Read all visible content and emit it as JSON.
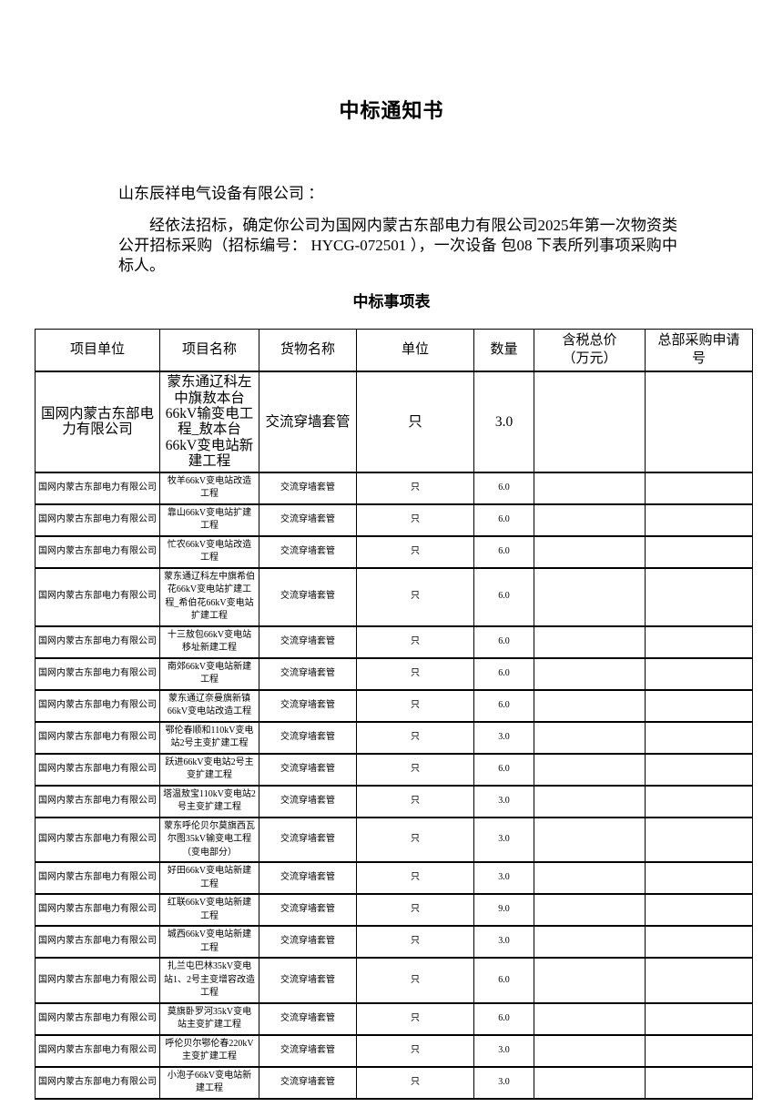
{
  "page": {
    "title": "中标通知书",
    "addressee": "山东辰祥电气设备有限公司 ：",
    "body_paragraph": "经依法招标，确定你公司为国网内蒙古东部电力有限公司2025年第一次物资类公开招标采购（招标编号： HYCG-072501 ），一次设备 包08 下表所列事项采购中标人。",
    "table_title": "中标事项表"
  },
  "colors": {
    "text": "#000000",
    "background": "#ffffff",
    "border": "#000000"
  },
  "table": {
    "headers": [
      "项目单位",
      "项目名称",
      "货物名称",
      "单位",
      "数量",
      "含税总价\n（万元）",
      "总部采购申请\n号"
    ],
    "column_keys": [
      "unit",
      "project",
      "goods",
      "uom",
      "qty",
      "price",
      "req_no"
    ],
    "rows": [
      {
        "unit": "国网内蒙古东部电力有限公司",
        "project": "蒙东通辽科左中旗敖本台66kV输变电工程_敖本台66kV变电站新建工程",
        "goods": "交流穿墙套管",
        "uom": "只",
        "qty": "3.0",
        "price": "",
        "req_no": ""
      },
      {
        "unit": "国网内蒙古东部电力有限公司",
        "project": "牧羊66kV变电站改造工程",
        "goods": "交流穿墙套管",
        "uom": "只",
        "qty": "6.0",
        "price": "",
        "req_no": ""
      },
      {
        "unit": "国网内蒙古东部电力有限公司",
        "project": "靠山66kV变电站扩建工程",
        "goods": "交流穿墙套管",
        "uom": "只",
        "qty": "6.0",
        "price": "",
        "req_no": ""
      },
      {
        "unit": "国网内蒙古东部电力有限公司",
        "project": "忙农66kV变电站改造工程",
        "goods": "交流穿墙套管",
        "uom": "只",
        "qty": "6.0",
        "price": "",
        "req_no": ""
      },
      {
        "unit": "国网内蒙古东部电力有限公司",
        "project": "蒙东通辽科左中旗希伯花66kV变电站扩建工程_希伯花66kV变电站扩建工程",
        "goods": "交流穿墙套管",
        "uom": "只",
        "qty": "6.0",
        "price": "",
        "req_no": ""
      },
      {
        "unit": "国网内蒙古东部电力有限公司",
        "project": "十三敖包66kV变电站移址新建工程",
        "goods": "交流穿墙套管",
        "uom": "只",
        "qty": "6.0",
        "price": "",
        "req_no": ""
      },
      {
        "unit": "国网内蒙古东部电力有限公司",
        "project": "南郊66kV变电站新建工程",
        "goods": "交流穿墙套管",
        "uom": "只",
        "qty": "6.0",
        "price": "",
        "req_no": ""
      },
      {
        "unit": "国网内蒙古东部电力有限公司",
        "project": "蒙东通辽奈曼旗新镇66kV变电站改造工程",
        "goods": "交流穿墙套管",
        "uom": "只",
        "qty": "6.0",
        "price": "",
        "req_no": ""
      },
      {
        "unit": "国网内蒙古东部电力有限公司",
        "project": "鄂伦春顺和110kV变电站2号主变扩建工程",
        "goods": "交流穿墙套管",
        "uom": "只",
        "qty": "3.0",
        "price": "",
        "req_no": ""
      },
      {
        "unit": "国网内蒙古东部电力有限公司",
        "project": "跃进66kV变电站2号主变扩建工程",
        "goods": "交流穿墙套管",
        "uom": "只",
        "qty": "6.0",
        "price": "",
        "req_no": ""
      },
      {
        "unit": "国网内蒙古东部电力有限公司",
        "project": "塔温敖宝110kV变电站2号主变扩建工程",
        "goods": "交流穿墙套管",
        "uom": "只",
        "qty": "3.0",
        "price": "",
        "req_no": ""
      },
      {
        "unit": "国网内蒙古东部电力有限公司",
        "project": "蒙东呼伦贝尔莫旗西瓦尔图35kV输变电工程（变电部分）",
        "goods": "交流穿墙套管",
        "uom": "只",
        "qty": "3.0",
        "price": "",
        "req_no": ""
      },
      {
        "unit": "国网内蒙古东部电力有限公司",
        "project": "好田66kV变电站新建工程",
        "goods": "交流穿墙套管",
        "uom": "只",
        "qty": "3.0",
        "price": "",
        "req_no": ""
      },
      {
        "unit": "国网内蒙古东部电力有限公司",
        "project": "红联66kV变电站新建工程",
        "goods": "交流穿墙套管",
        "uom": "只",
        "qty": "9.0",
        "price": "",
        "req_no": ""
      },
      {
        "unit": "国网内蒙古东部电力有限公司",
        "project": "城西66kV变电站新建工程",
        "goods": "交流穿墙套管",
        "uom": "只",
        "qty": "3.0",
        "price": "",
        "req_no": ""
      },
      {
        "unit": "国网内蒙古东部电力有限公司",
        "project": "扎兰屯巴林35kV变电站1、2号主变增容改造工程",
        "goods": "交流穿墙套管",
        "uom": "只",
        "qty": "6.0",
        "price": "",
        "req_no": ""
      },
      {
        "unit": "国网内蒙古东部电力有限公司",
        "project": "莫旗卧罗河35kV变电站主变扩建工程",
        "goods": "交流穿墙套管",
        "uom": "只",
        "qty": "6.0",
        "price": "",
        "req_no": ""
      },
      {
        "unit": "国网内蒙古东部电力有限公司",
        "project": "呼伦贝尔鄂伦春220kV主变扩建工程",
        "goods": "交流穿墙套管",
        "uom": "只",
        "qty": "3.0",
        "price": "",
        "req_no": ""
      },
      {
        "unit": "国网内蒙古东部电力有限公司",
        "project": "小泡子66kV变电站新建工程",
        "goods": "交流穿墙套管",
        "uom": "只",
        "qty": "3.0",
        "price": "",
        "req_no": ""
      }
    ]
  }
}
